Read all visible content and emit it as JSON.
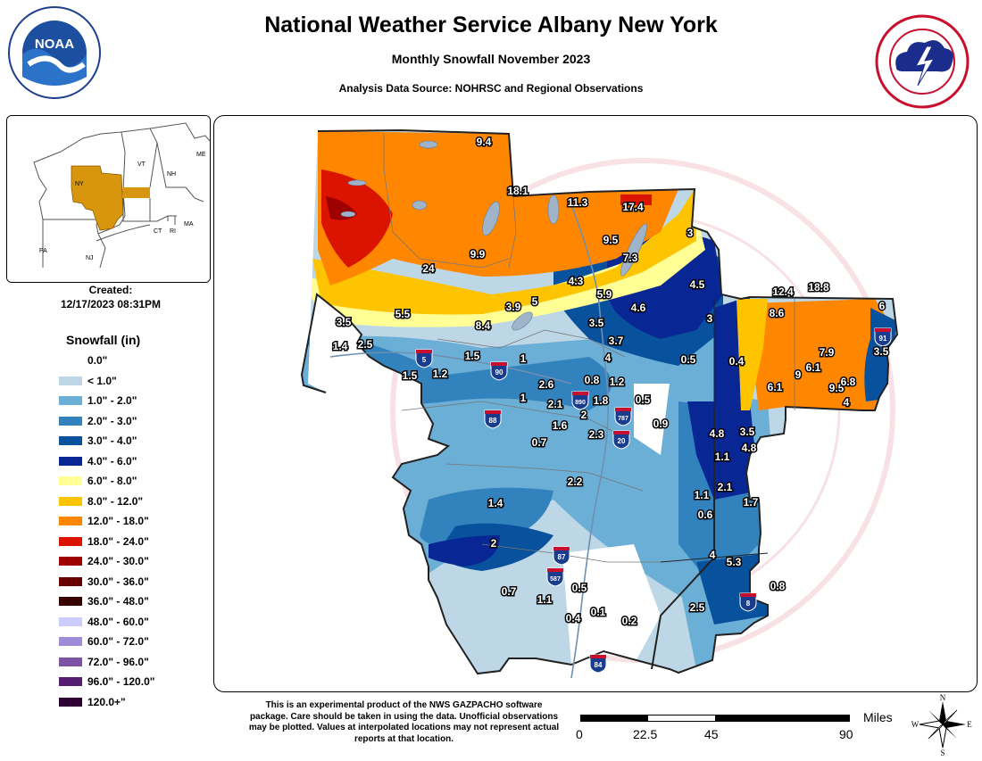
{
  "header": {
    "title": "National Weather Service Albany New York",
    "subtitle": "Monthly Snowfall November 2023",
    "source": "Analysis Data Source: NOHRSC and Regional Observations"
  },
  "logos": {
    "noaa": {
      "icon": "noaa-logo",
      "text": "NOAA"
    },
    "nws": {
      "icon": "nws-logo",
      "text": "NATIONAL WEATHER SERVICE"
    }
  },
  "inset": {
    "state_labels": [
      "ME",
      "VT",
      "NH",
      "NY",
      "MA",
      "CT",
      "RI",
      "PA",
      "NJ"
    ],
    "highlight_color": "#d8960f"
  },
  "created": {
    "label": "Created:",
    "value": "12/17/2023 08:31PM"
  },
  "legend": {
    "title": "Snowfall (in)",
    "items": [
      {
        "label": "0.0\"",
        "color": "#ffffff"
      },
      {
        "label": "< 1.0\"",
        "color": "#bdd7e7"
      },
      {
        "label": "1.0\" - 2.0\"",
        "color": "#6baed6"
      },
      {
        "label": "2.0\" - 3.0\"",
        "color": "#3182bd"
      },
      {
        "label": "3.0\" - 4.0\"",
        "color": "#08519c"
      },
      {
        "label": "4.0\" - 6.0\"",
        "color": "#082694"
      },
      {
        "label": "6.0\" - 8.0\"",
        "color": "#ffff96"
      },
      {
        "label": "8.0\" - 12.0\"",
        "color": "#ffc400"
      },
      {
        "label": "12.0\" - 18.0\"",
        "color": "#ff8700"
      },
      {
        "label": "18.0\" - 24.0\"",
        "color": "#db1400"
      },
      {
        "label": "24.0\" - 30.0\"",
        "color": "#9e0000"
      },
      {
        "label": "30.0\" - 36.0\"",
        "color": "#690000"
      },
      {
        "label": "36.0\" - 48.0\"",
        "color": "#360000"
      },
      {
        "label": "48.0\" - 60.0\"",
        "color": "#ccccff"
      },
      {
        "label": "60.0\" - 72.0\"",
        "color": "#9f8cd8"
      },
      {
        "label": "72.0\" - 96.0\"",
        "color": "#7c52a5"
      },
      {
        "label": "96.0\" - 120.0\"",
        "color": "#561c72"
      },
      {
        "label": "120.0+\"",
        "color": "#2e0033"
      }
    ]
  },
  "map": {
    "watermark": "NATIONAL WEATHER SERVICE U.S. DEPARTMENT OF COMMERCE",
    "snowfall_values": [
      "9.4",
      "18.1",
      "11.3",
      "17.4",
      "9.5",
      "7.3",
      "9.9",
      "24",
      "3",
      "4.3",
      "5.9",
      "4.5",
      "12.4",
      "18.8",
      "6",
      "3.5",
      "5.5",
      "3.9",
      "5",
      "8.4",
      "3.5",
      "4.6",
      "3",
      "8.6",
      "1.4",
      "2.5",
      "3.7",
      "7.9",
      "3.5",
      "1.5",
      "1",
      "4",
      "0.5",
      "0.4",
      "6.1",
      "1.5",
      "1.2",
      "2.6",
      "0.8",
      "1.2",
      "6.1",
      "9",
      "9.5",
      "6.8",
      "1",
      "2.1",
      "1.8",
      "0.5",
      "4",
      "2",
      "1.6",
      "2.3",
      "0.9",
      "0.7",
      "4.8",
      "3.5",
      "4.8",
      "1.1",
      "2.2",
      "1.1",
      "2.1",
      "1.4",
      "0.6",
      "1.7",
      "2",
      "4",
      "5.3",
      "0.7",
      "0.5",
      "0.8",
      "1.1",
      "0.4",
      "0.1",
      "0.2",
      "2.5"
    ],
    "interstates": [
      "90",
      "88",
      "890",
      "787",
      "20",
      "87",
      "587",
      "84",
      "91",
      "5",
      "8"
    ]
  },
  "disclaimer": "This is an experimental product of the NWS GAZPACHO software package. Care should be taken in using the data. Unofficial observations may be plotted. Values at interpolated locations may not represent actual reports at that location.",
  "scale": {
    "units": "Miles",
    "ticks": [
      "0",
      "22.5",
      "45",
      "90"
    ]
  },
  "compass": {
    "N": "N",
    "S": "S",
    "E": "E",
    "W": "W"
  }
}
